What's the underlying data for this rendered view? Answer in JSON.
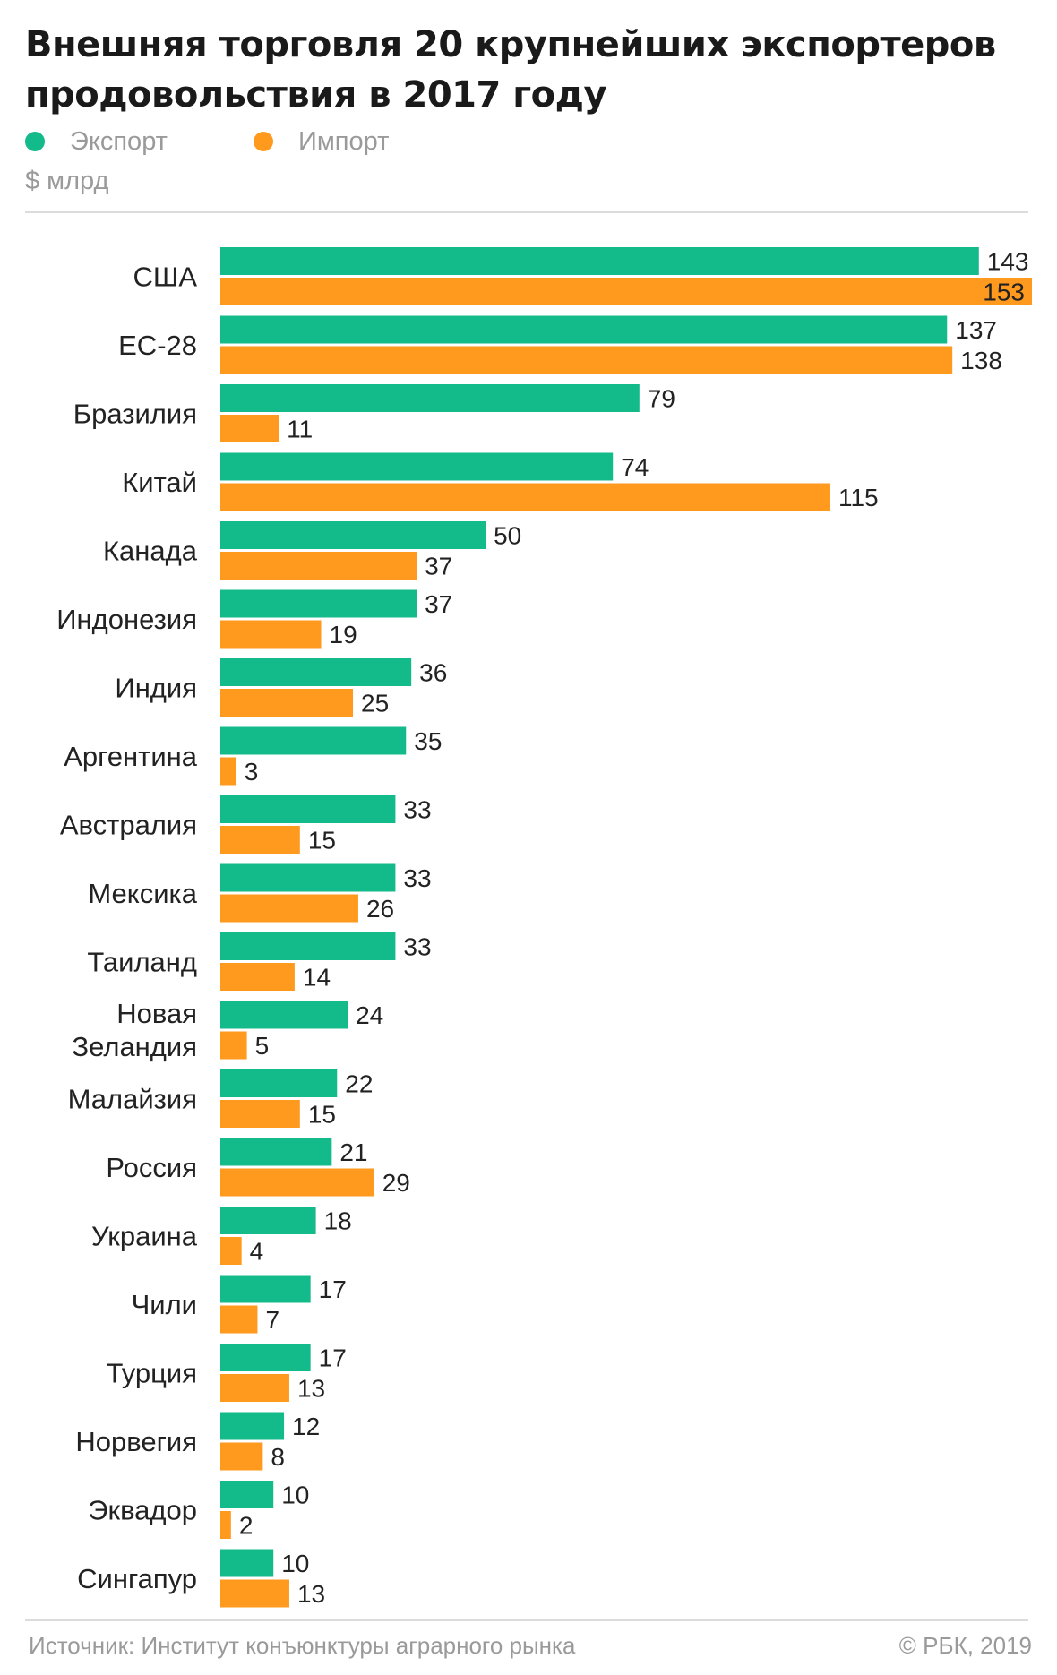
{
  "header": {
    "title": "Внешняя торговля 20 крупнейших экспортеров продовольствия в 2017 году",
    "unit": "$ млрд"
  },
  "legend": [
    {
      "label": "Экспорт",
      "color": "#14bb8a"
    },
    {
      "label": "Импорт",
      "color": "#ff9a1f"
    }
  ],
  "footer": {
    "source": "Источник: Институт конъюнктуры аграрного рынка",
    "credit": "© РБК, 2019"
  },
  "chart_data": {
    "type": "bar",
    "orientation": "horizontal",
    "title": "Внешняя торговля 20 крупнейших экспортеров продовольствия в 2017 году",
    "unit": "$ млрд",
    "categories": [
      "США",
      "ЕС-28",
      "Бразилия",
      "Китай",
      "Канада",
      "Индонезия",
      "Индия",
      "Аргентина",
      "Австралия",
      "Мексика",
      "Таиланд",
      "Новая Зеландия",
      "Малайзия",
      "Россия",
      "Украина",
      "Чили",
      "Турция",
      "Норвегия",
      "Эквадор",
      "Сингапур"
    ],
    "series": [
      {
        "name": "Экспорт",
        "color": "#14bb8a",
        "values": [
          143,
          137,
          79,
          74,
          50,
          37,
          36,
          35,
          33,
          33,
          33,
          24,
          22,
          21,
          18,
          17,
          17,
          12,
          10,
          10
        ]
      },
      {
        "name": "Импорт",
        "color": "#ff9a1f",
        "values": [
          153,
          138,
          11,
          115,
          37,
          19,
          25,
          3,
          15,
          26,
          14,
          5,
          15,
          29,
          4,
          7,
          13,
          8,
          2,
          13
        ]
      }
    ],
    "xlim": [
      0,
      153
    ],
    "grid": false,
    "legend_position": "top-left"
  }
}
